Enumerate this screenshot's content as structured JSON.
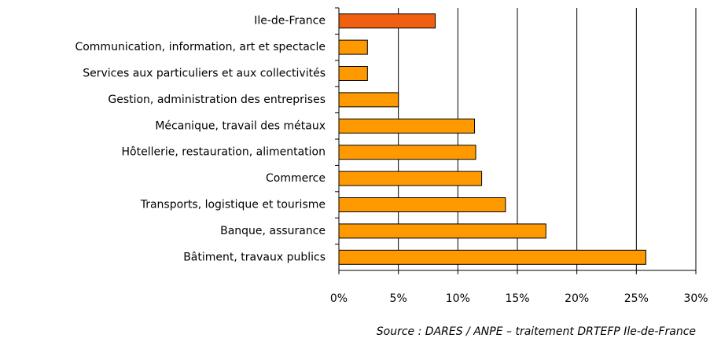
{
  "chart_data": {
    "type": "bar",
    "orientation": "horizontal",
    "categories": [
      "Ile-de-France",
      "Communication, information, art et spectacle",
      "Services aux particuliers et aux collectivités",
      "Gestion, administration des entreprises",
      "Mécanique, travail des métaux",
      "Hôtellerie, restauration, alimentation",
      "Commerce",
      "Transports, logistique et tourisme",
      "Banque, assurance",
      "Bâtiment, travaux publics"
    ],
    "values": [
      8.1,
      2.4,
      2.4,
      5.0,
      11.4,
      11.5,
      12.0,
      14.0,
      17.4,
      25.8
    ],
    "colors": [
      "#f06010",
      "#ff9900",
      "#ff9900",
      "#ff9900",
      "#ff9900",
      "#ff9900",
      "#ff9900",
      "#ff9900",
      "#ff9900",
      "#ff9900"
    ],
    "xlim": [
      0,
      30
    ],
    "xticks": [
      {
        "value": 0,
        "label": "0%"
      },
      {
        "value": 5,
        "label": "5%"
      },
      {
        "value": 10,
        "label": "10%"
      },
      {
        "value": 15,
        "label": "15%"
      },
      {
        "value": 20,
        "label": "20%"
      },
      {
        "value": 25,
        "label": "25%"
      },
      {
        "value": 30,
        "label": "30%"
      }
    ],
    "grid": true,
    "source": "Source : DARES / ANPE – traitement DRTEFP Ile-de-France"
  }
}
